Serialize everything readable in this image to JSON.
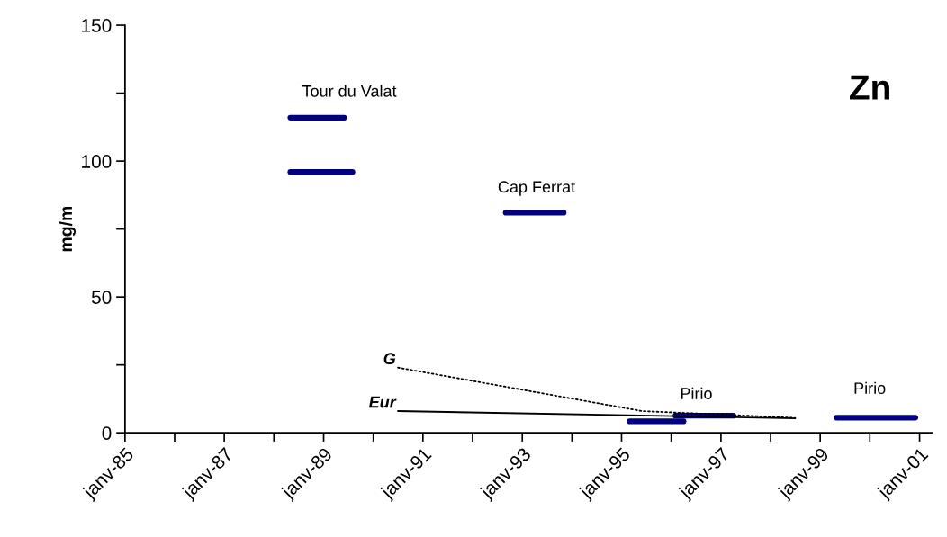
{
  "chart_data": {
    "type": "line",
    "title": "Zn",
    "ylabel": "mg/m",
    "series": [
      {
        "color": "#000080",
        "x": [
          "1988-05",
          "1989-06"
        ],
        "values": [
          116,
          116
        ]
      },
      {
        "color": "#000080",
        "x": [
          "1988-05",
          "1989-08"
        ],
        "values": [
          96,
          96
        ]
      },
      {
        "color": "#000080",
        "x": [
          "1992-09",
          "1993-11"
        ],
        "values": [
          81,
          81
        ]
      },
      {
        "color": "#000080",
        "x": [
          "1995-03",
          "1996-04"
        ],
        "values": [
          4.2,
          4.2
        ]
      },
      {
        "color": "#000080",
        "x": [
          "1996-02",
          "1997-04"
        ],
        "values": [
          6.3,
          6.3
        ]
      },
      {
        "color": "#000080",
        "x": [
          "1999-05",
          "2000-12"
        ],
        "values": [
          5.6,
          5.6
        ]
      },
      {
        "name": "G",
        "color": "#000000",
        "line_style": "dotted",
        "x": [
          "1990-07",
          "1995-06",
          "1998-07"
        ],
        "values": [
          24,
          8,
          5.5
        ]
      },
      {
        "name": "Eur",
        "color": "#000000",
        "line_style": "solid",
        "x": [
          "1990-07",
          "1998-07"
        ],
        "values": [
          8,
          5.3
        ]
      }
    ],
    "annotations": [
      "Tour du Valat",
      "Cap Ferrat",
      "Pirio",
      "Pirio"
    ],
    "xlim": [
      "1985-01",
      "2001-04"
    ],
    "xticks": [
      {
        "value": "1985-01",
        "label": "janv-85"
      },
      {
        "value": "1986-01",
        "label": null
      },
      {
        "value": "1987-01",
        "label": "janv-87"
      },
      {
        "value": "1988-01",
        "label": null
      },
      {
        "value": "1989-01",
        "label": "janv-89"
      },
      {
        "value": "1990-01",
        "label": null
      },
      {
        "value": "1991-01",
        "label": "janv-91"
      },
      {
        "value": "1992-01",
        "label": null
      },
      {
        "value": "1993-01",
        "label": "janv-93"
      },
      {
        "value": "1994-01",
        "label": null
      },
      {
        "value": "1995-01",
        "label": "janv-95"
      },
      {
        "value": "1996-01",
        "label": null
      },
      {
        "value": "1997-01",
        "label": "janv-97"
      },
      {
        "value": "1998-01",
        "label": null
      },
      {
        "value": "1999-01",
        "label": "janv-99"
      },
      {
        "value": "2000-01",
        "label": null
      },
      {
        "value": "2001-01",
        "label": "janv-01"
      }
    ],
    "ylim": [
      0,
      150
    ],
    "yticks": [
      0,
      {
        "value": 25,
        "label": null
      },
      50,
      {
        "value": 75,
        "label": null
      },
      100,
      {
        "value": 125,
        "label": null
      },
      150
    ],
    "grid": false,
    "legend": false
  }
}
